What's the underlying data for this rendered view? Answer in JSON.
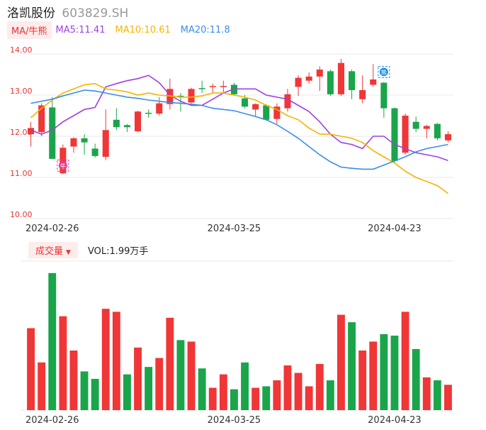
{
  "header": {
    "name": "洛凯股份",
    "code": "603829.SH"
  },
  "ma_legend": {
    "toggle_label": "MA/牛熊",
    "items": [
      {
        "label": "MA5:11.41",
        "color": "#a040e0"
      },
      {
        "label": "MA10:10.61",
        "color": "#f5b400"
      },
      {
        "label": "MA20:11.8",
        "color": "#3a8ee6"
      }
    ]
  },
  "volume_legend": {
    "toggle_label": "成交量",
    "value_label": "VOL:1.99万手"
  },
  "colors": {
    "up": "#f03636",
    "down": "#1aa54a",
    "axis_text_price": "#e63535",
    "axis_text_volume": "#1aa54a",
    "grid": "#e8e8e8"
  },
  "chart_data": {
    "type": "candlestick",
    "y_ticks": [
      "14.00",
      "13.00",
      "12.00",
      "11.00",
      "10.00"
    ],
    "ylim": [
      10.0,
      14.0
    ],
    "x_tick_labels": [
      {
        "index": 2,
        "label": "2024-02-26"
      },
      {
        "index": 19,
        "label": "2024-03-25"
      },
      {
        "index": 34,
        "label": "2024-04-23"
      }
    ],
    "candles": [
      {
        "o": 12.05,
        "c": 12.2,
        "h": 12.35,
        "l": 11.75
      },
      {
        "o": 12.1,
        "c": 12.75,
        "h": 12.8,
        "l": 12.0
      },
      {
        "o": 12.7,
        "c": 11.45,
        "h": 12.95,
        "l": 11.45
      },
      {
        "o": 11.1,
        "c": 11.72,
        "h": 11.8,
        "l": 11.08
      },
      {
        "o": 11.75,
        "c": 11.95,
        "h": 11.98,
        "l": 11.6
      },
      {
        "o": 11.95,
        "c": 11.85,
        "h": 12.05,
        "l": 11.55
      },
      {
        "o": 11.7,
        "c": 11.52,
        "h": 11.82,
        "l": 11.48
      },
      {
        "o": 11.5,
        "c": 12.15,
        "h": 12.65,
        "l": 11.42
      },
      {
        "o": 12.4,
        "c": 12.22,
        "h": 12.68,
        "l": 12.15
      },
      {
        "o": 12.27,
        "c": 12.22,
        "h": 12.3,
        "l": 12.1
      },
      {
        "o": 12.12,
        "c": 12.6,
        "h": 12.62,
        "l": 12.1
      },
      {
        "o": 12.57,
        "c": 12.55,
        "h": 12.65,
        "l": 12.45
      },
      {
        "o": 12.55,
        "c": 12.8,
        "h": 12.95,
        "l": 12.5
      },
      {
        "o": 12.78,
        "c": 13.15,
        "h": 13.4,
        "l": 12.65
      },
      {
        "o": 12.98,
        "c": 12.95,
        "h": 13.05,
        "l": 12.6
      },
      {
        "o": 12.82,
        "c": 13.15,
        "h": 13.18,
        "l": 12.8
      },
      {
        "o": 13.17,
        "c": 13.15,
        "h": 13.35,
        "l": 13.05
      },
      {
        "o": 13.2,
        "c": 13.22,
        "h": 13.28,
        "l": 13.05
      },
      {
        "o": 13.2,
        "c": 13.22,
        "h": 13.35,
        "l": 13.05
      },
      {
        "o": 13.25,
        "c": 13.02,
        "h": 13.3,
        "l": 12.98
      },
      {
        "o": 12.92,
        "c": 12.72,
        "h": 13.0,
        "l": 12.68
      },
      {
        "o": 12.65,
        "c": 12.78,
        "h": 12.8,
        "l": 12.5
      },
      {
        "o": 12.75,
        "c": 12.4,
        "h": 12.78,
        "l": 12.38
      },
      {
        "o": 12.42,
        "c": 12.72,
        "h": 12.8,
        "l": 12.3
      },
      {
        "o": 12.68,
        "c": 13.02,
        "h": 13.15,
        "l": 12.6
      },
      {
        "o": 13.2,
        "c": 13.42,
        "h": 13.48,
        "l": 12.98
      },
      {
        "o": 13.35,
        "c": 13.45,
        "h": 13.55,
        "l": 13.28
      },
      {
        "o": 13.45,
        "c": 13.62,
        "h": 13.7,
        "l": 13.1
      },
      {
        "o": 13.58,
        "c": 13.02,
        "h": 13.62,
        "l": 12.98
      },
      {
        "o": 13.02,
        "c": 13.78,
        "h": 13.88,
        "l": 12.98
      },
      {
        "o": 13.58,
        "c": 13.12,
        "h": 13.62,
        "l": 12.9
      },
      {
        "o": 12.9,
        "c": 13.12,
        "h": 13.48,
        "l": 12.8
      },
      {
        "o": 13.25,
        "c": 13.38,
        "h": 13.75,
        "l": 13.2
      },
      {
        "o": 13.3,
        "c": 12.68,
        "h": 13.32,
        "l": 12.45
      },
      {
        "o": 12.68,
        "c": 11.4,
        "h": 12.7,
        "l": 11.35
      },
      {
        "o": 11.6,
        "c": 12.5,
        "h": 12.55,
        "l": 11.55
      },
      {
        "o": 12.35,
        "c": 12.18,
        "h": 12.48,
        "l": 12.1
      },
      {
        "o": 12.18,
        "c": 12.25,
        "h": 12.28,
        "l": 11.95
      },
      {
        "o": 12.3,
        "c": 11.95,
        "h": 12.32,
        "l": 11.9
      },
      {
        "o": 11.9,
        "c": 12.05,
        "h": 12.12,
        "l": 11.85
      }
    ],
    "ma_series": [
      {
        "name": "MA5",
        "color": "#a040e0",
        "values": [
          12.15,
          12.05,
          12.15,
          12.35,
          12.5,
          12.65,
          12.7,
          13.2,
          13.28,
          13.35,
          13.4,
          13.48,
          13.3,
          13.0,
          12.85,
          12.75,
          12.75,
          12.9,
          13.05,
          13.15,
          13.15,
          13.15,
          13.0,
          12.95,
          12.9,
          12.75,
          12.6,
          12.35,
          12.05,
          11.85,
          11.8,
          11.7,
          12.0,
          12.0,
          11.8,
          11.7,
          11.6,
          11.55,
          11.5,
          11.41
        ]
      },
      {
        "name": "MA10",
        "color": "#f5b400",
        "values": [
          12.45,
          12.68,
          12.88,
          13.05,
          13.15,
          13.25,
          13.28,
          13.15,
          13.12,
          13.08,
          13.0,
          13.05,
          13.0,
          12.98,
          12.95,
          12.95,
          12.98,
          13.05,
          13.05,
          13.0,
          12.95,
          12.88,
          12.75,
          12.65,
          12.5,
          12.4,
          12.2,
          12.05,
          12.05,
          12.0,
          11.95,
          11.85,
          11.65,
          11.5,
          11.35,
          11.15,
          11.0,
          10.9,
          10.8,
          10.61
        ]
      },
      {
        "name": "MA20",
        "color": "#3a8ee6",
        "values": [
          12.8,
          12.85,
          12.9,
          12.98,
          13.05,
          13.12,
          13.1,
          13.05,
          13.0,
          12.95,
          12.92,
          12.88,
          12.85,
          12.82,
          12.8,
          12.78,
          12.75,
          12.68,
          12.65,
          12.62,
          12.55,
          12.48,
          12.4,
          12.28,
          12.12,
          11.95,
          11.75,
          11.55,
          11.38,
          11.25,
          11.22,
          11.2,
          11.2,
          11.3,
          11.4,
          11.5,
          11.62,
          11.7,
          11.75,
          11.8
        ]
      }
    ],
    "markers": [
      {
        "index": 3,
        "label": "牛",
        "color": "#ee3e8e"
      },
      {
        "index": 33,
        "label": "熊",
        "color": "#1e8fe6"
      }
    ],
    "volume": {
      "values": [
        55,
        32,
        92,
        63,
        40,
        26,
        21,
        68,
        66,
        24,
        42,
        29,
        35,
        62,
        47,
        46,
        28,
        15,
        24,
        14,
        32,
        15,
        16,
        20,
        30,
        25,
        16,
        31,
        20,
        64,
        59,
        40,
        46,
        51,
        50,
        66,
        41,
        22,
        20,
        17
      ],
      "up": [
        true,
        true,
        false,
        true,
        true,
        false,
        false,
        true,
        true,
        false,
        true,
        false,
        true,
        true,
        false,
        true,
        false,
        true,
        true,
        false,
        false,
        true,
        false,
        true,
        true,
        true,
        true,
        true,
        false,
        true,
        false,
        true,
        true,
        false,
        false,
        true,
        false,
        true,
        false,
        true
      ]
    }
  }
}
